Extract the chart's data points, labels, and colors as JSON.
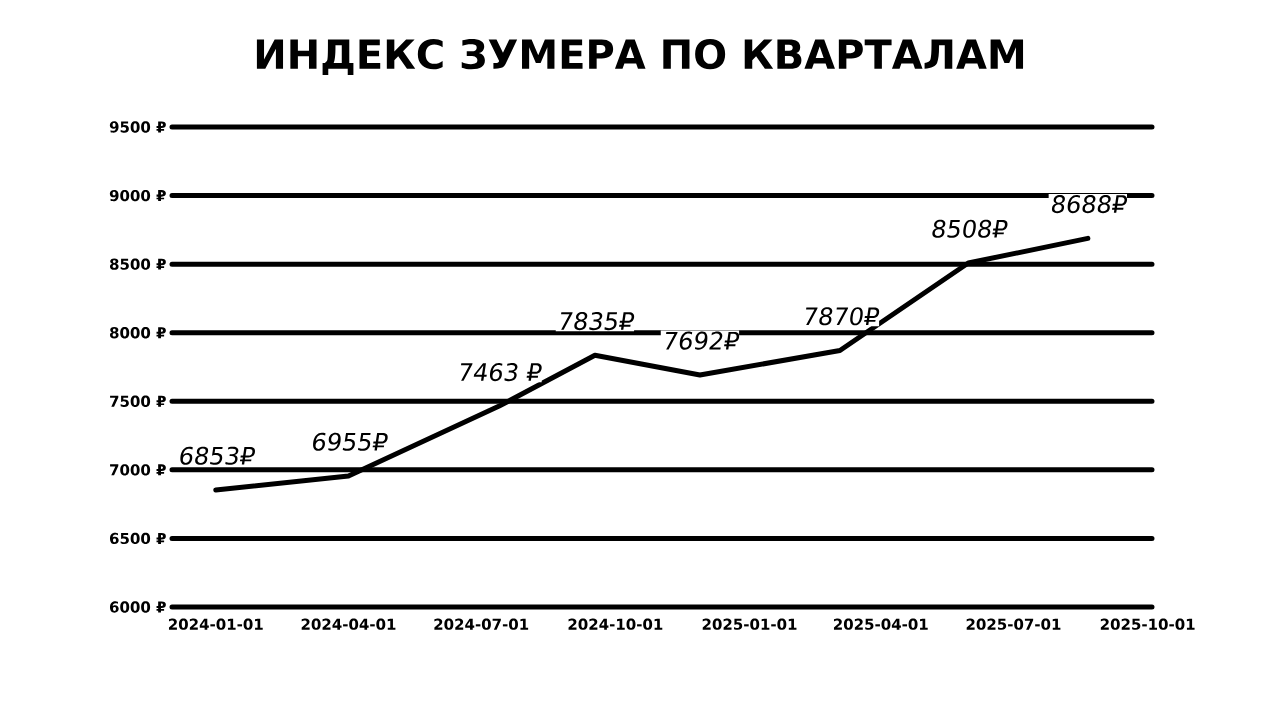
{
  "chart_data": {
    "type": "line",
    "title": "ИНДЕКС ЗУМЕРА ПО КВАРТАЛАМ",
    "x": [
      "2024-01-01",
      "2024-04-01",
      "2024-07-13",
      "2024-09-17",
      "2024-11-28",
      "2025-03-04",
      "2025-05-31",
      "2025-08-21"
    ],
    "series": [
      {
        "color": "#000000",
        "values": [
          6853,
          6955,
          7463,
          7835,
          7692,
          7870,
          8508,
          8688
        ],
        "value_labels": [
          "6853₽",
          "6955₽",
          "7463 ₽",
          "7835₽",
          "7692₽",
          "7870₽",
          "8508₽",
          "8688₽"
        ]
      }
    ],
    "xlim": [
      "2023-12-02",
      "2025-10-04"
    ],
    "xticks": [
      "2024-01-01",
      "2024-04-01",
      "2024-07-01",
      "2024-10-01",
      "2025-01-01",
      "2025-04-01",
      "2025-07-01",
      "2025-10-01"
    ],
    "ylim": [
      6000,
      9500
    ],
    "yticks": [
      {
        "value": 6000,
        "label": "6000 ₽"
      },
      {
        "value": 6500,
        "label": "6500 ₽"
      },
      {
        "value": 7000,
        "label": "7000 ₽"
      },
      {
        "value": 7500,
        "label": "7500 ₽"
      },
      {
        "value": 8000,
        "label": "8000 ₽"
      },
      {
        "value": 8500,
        "label": "8500 ₽"
      },
      {
        "value": 9000,
        "label": "9000 ₽"
      },
      {
        "value": 9500,
        "label": "9500 ₽"
      }
    ],
    "grid": "y"
  }
}
